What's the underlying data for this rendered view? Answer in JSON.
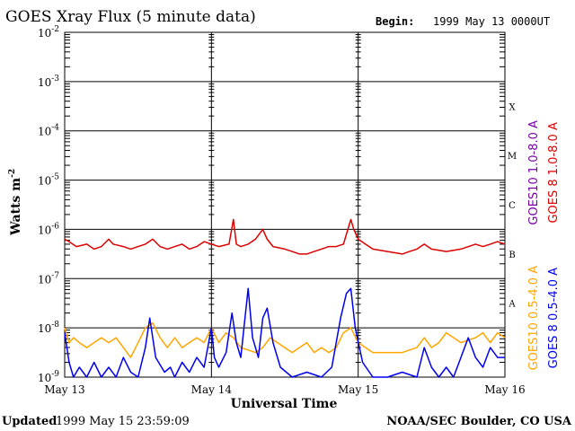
{
  "chart_data": {
    "type": "line",
    "title": "GOES Xray Flux (5 minute data)",
    "begin_label": "Begin:",
    "begin_value": "1999 May 13 0000UT",
    "xlabel": "Universal Time",
    "ylabel": "Watts m",
    "ylabel_sup": "-2",
    "yscale": "log",
    "ylim": [
      1e-09,
      0.01
    ],
    "xlim": [
      0,
      3
    ],
    "x_ticks": [
      {
        "value": 0,
        "label": "May 13"
      },
      {
        "value": 1,
        "label": "May 14"
      },
      {
        "value": 2,
        "label": "May 15"
      },
      {
        "value": 3,
        "label": "May 16"
      }
    ],
    "y_ticks": [
      {
        "exp": -2,
        "base": "10",
        "sup": "-2"
      },
      {
        "exp": -3,
        "base": "10",
        "sup": "-3"
      },
      {
        "exp": -4,
        "base": "10",
        "sup": "-4"
      },
      {
        "exp": -5,
        "base": "10",
        "sup": "-5"
      },
      {
        "exp": -6,
        "base": "10",
        "sup": "-6"
      },
      {
        "exp": -7,
        "base": "10",
        "sup": "-7"
      },
      {
        "exp": -8,
        "base": "10",
        "sup": "-8"
      },
      {
        "exp": -9,
        "base": "10",
        "sup": "-9"
      }
    ],
    "flare_classes": [
      {
        "label": "X",
        "exp": -3.5
      },
      {
        "label": "M",
        "exp": -4.5
      },
      {
        "label": "C",
        "exp": -5.5
      },
      {
        "label": "B",
        "exp": -6.5
      },
      {
        "label": "A",
        "exp": -7.5
      }
    ],
    "grid": true,
    "legend_position": "right",
    "series": [
      {
        "name": "GOES 8 1.0-8.0 A",
        "color": "#dd0000",
        "legend_group": "long",
        "points": [
          [
            0,
            -6.2
          ],
          [
            0.03,
            -6.25
          ],
          [
            0.08,
            -6.35
          ],
          [
            0.15,
            -6.3
          ],
          [
            0.2,
            -6.4
          ],
          [
            0.25,
            -6.35
          ],
          [
            0.3,
            -6.2
          ],
          [
            0.33,
            -6.3
          ],
          [
            0.4,
            -6.35
          ],
          [
            0.45,
            -6.4
          ],
          [
            0.5,
            -6.35
          ],
          [
            0.55,
            -6.3
          ],
          [
            0.6,
            -6.2
          ],
          [
            0.65,
            -6.35
          ],
          [
            0.7,
            -6.4
          ],
          [
            0.75,
            -6.35
          ],
          [
            0.8,
            -6.3
          ],
          [
            0.85,
            -6.4
          ],
          [
            0.9,
            -6.35
          ],
          [
            0.95,
            -6.25
          ],
          [
            1.0,
            -6.3
          ],
          [
            1.05,
            -6.35
          ],
          [
            1.12,
            -6.3
          ],
          [
            1.15,
            -5.8
          ],
          [
            1.17,
            -6.3
          ],
          [
            1.2,
            -6.35
          ],
          [
            1.25,
            -6.3
          ],
          [
            1.3,
            -6.2
          ],
          [
            1.35,
            -6.0
          ],
          [
            1.38,
            -6.2
          ],
          [
            1.42,
            -6.35
          ],
          [
            1.5,
            -6.4
          ],
          [
            1.55,
            -6.45
          ],
          [
            1.6,
            -6.5
          ],
          [
            1.65,
            -6.5
          ],
          [
            1.7,
            -6.45
          ],
          [
            1.75,
            -6.4
          ],
          [
            1.8,
            -6.35
          ],
          [
            1.85,
            -6.35
          ],
          [
            1.9,
            -6.3
          ],
          [
            1.93,
            -6.0
          ],
          [
            1.95,
            -5.8
          ],
          [
            1.97,
            -6.0
          ],
          [
            2.0,
            -6.2
          ],
          [
            2.05,
            -6.3
          ],
          [
            2.1,
            -6.4
          ],
          [
            2.2,
            -6.45
          ],
          [
            2.3,
            -6.5
          ],
          [
            2.35,
            -6.45
          ],
          [
            2.4,
            -6.4
          ],
          [
            2.45,
            -6.3
          ],
          [
            2.5,
            -6.4
          ],
          [
            2.6,
            -6.45
          ],
          [
            2.7,
            -6.4
          ],
          [
            2.8,
            -6.3
          ],
          [
            2.85,
            -6.35
          ],
          [
            2.9,
            -6.3
          ],
          [
            2.95,
            -6.25
          ],
          [
            3.0,
            -6.3
          ]
        ]
      },
      {
        "name": "GOES10 1.0-8.0 A",
        "color": "#7a00a8",
        "legend_group": "long",
        "points": []
      },
      {
        "name": "GOES10 0.5-4.0 A",
        "color": "#ffa500",
        "legend_group": "short",
        "points": [
          [
            0,
            -8.0
          ],
          [
            0.03,
            -8.3
          ],
          [
            0.06,
            -8.2
          ],
          [
            0.1,
            -8.3
          ],
          [
            0.15,
            -8.4
          ],
          [
            0.2,
            -8.3
          ],
          [
            0.25,
            -8.2
          ],
          [
            0.3,
            -8.3
          ],
          [
            0.35,
            -8.2
          ],
          [
            0.4,
            -8.4
          ],
          [
            0.45,
            -8.6
          ],
          [
            0.5,
            -8.3
          ],
          [
            0.55,
            -8.0
          ],
          [
            0.6,
            -7.9
          ],
          [
            0.65,
            -8.2
          ],
          [
            0.7,
            -8.4
          ],
          [
            0.75,
            -8.2
          ],
          [
            0.8,
            -8.4
          ],
          [
            0.85,
            -8.3
          ],
          [
            0.9,
            -8.2
          ],
          [
            0.95,
            -8.3
          ],
          [
            1.0,
            -8.0
          ],
          [
            1.05,
            -8.3
          ],
          [
            1.1,
            -8.1
          ],
          [
            1.15,
            -8.2
          ],
          [
            1.2,
            -8.4
          ],
          [
            1.3,
            -8.5
          ],
          [
            1.35,
            -8.4
          ],
          [
            1.4,
            -8.2
          ],
          [
            1.45,
            -8.3
          ],
          [
            1.5,
            -8.4
          ],
          [
            1.55,
            -8.5
          ],
          [
            1.6,
            -8.4
          ],
          [
            1.65,
            -8.3
          ],
          [
            1.7,
            -8.5
          ],
          [
            1.75,
            -8.4
          ],
          [
            1.8,
            -8.5
          ],
          [
            1.85,
            -8.4
          ],
          [
            1.9,
            -8.1
          ],
          [
            1.95,
            -8.0
          ],
          [
            2.0,
            -8.3
          ],
          [
            2.1,
            -8.5
          ],
          [
            2.2,
            -8.5
          ],
          [
            2.3,
            -8.5
          ],
          [
            2.4,
            -8.4
          ],
          [
            2.45,
            -8.2
          ],
          [
            2.5,
            -8.4
          ],
          [
            2.55,
            -8.3
          ],
          [
            2.6,
            -8.1
          ],
          [
            2.7,
            -8.3
          ],
          [
            2.8,
            -8.2
          ],
          [
            2.85,
            -8.1
          ],
          [
            2.9,
            -8.3
          ],
          [
            2.95,
            -8.1
          ],
          [
            3.0,
            -8.2
          ]
        ]
      },
      {
        "name": "GOES 8 0.5-4.0 A",
        "color": "#0000ee",
        "legend_group": "short",
        "points": [
          [
            0,
            -8.1
          ],
          [
            0.03,
            -8.7
          ],
          [
            0.06,
            -9.0
          ],
          [
            0.1,
            -8.8
          ],
          [
            0.15,
            -9.0
          ],
          [
            0.2,
            -8.7
          ],
          [
            0.25,
            -9.0
          ],
          [
            0.3,
            -8.8
          ],
          [
            0.35,
            -9.0
          ],
          [
            0.4,
            -8.6
          ],
          [
            0.45,
            -8.9
          ],
          [
            0.5,
            -9.0
          ],
          [
            0.55,
            -8.4
          ],
          [
            0.58,
            -7.8
          ],
          [
            0.62,
            -8.6
          ],
          [
            0.68,
            -8.9
          ],
          [
            0.72,
            -8.8
          ],
          [
            0.75,
            -9.0
          ],
          [
            0.8,
            -8.7
          ],
          [
            0.85,
            -8.9
          ],
          [
            0.9,
            -8.6
          ],
          [
            0.95,
            -8.8
          ],
          [
            1.0,
            -8.0
          ],
          [
            1.02,
            -8.6
          ],
          [
            1.05,
            -8.8
          ],
          [
            1.1,
            -8.5
          ],
          [
            1.14,
            -7.7
          ],
          [
            1.17,
            -8.3
          ],
          [
            1.2,
            -8.6
          ],
          [
            1.25,
            -7.2
          ],
          [
            1.28,
            -8.2
          ],
          [
            1.32,
            -8.6
          ],
          [
            1.35,
            -7.8
          ],
          [
            1.38,
            -7.6
          ],
          [
            1.42,
            -8.3
          ],
          [
            1.47,
            -8.8
          ],
          [
            1.55,
            -9.0
          ],
          [
            1.65,
            -8.9
          ],
          [
            1.75,
            -9.0
          ],
          [
            1.82,
            -8.8
          ],
          [
            1.88,
            -7.8
          ],
          [
            1.92,
            -7.3
          ],
          [
            1.95,
            -7.2
          ],
          [
            1.98,
            -8.0
          ],
          [
            2.03,
            -8.7
          ],
          [
            2.1,
            -9.0
          ],
          [
            2.2,
            -9.0
          ],
          [
            2.3,
            -8.9
          ],
          [
            2.4,
            -9.0
          ],
          [
            2.45,
            -8.4
          ],
          [
            2.5,
            -8.8
          ],
          [
            2.55,
            -9.0
          ],
          [
            2.6,
            -8.8
          ],
          [
            2.65,
            -9.0
          ],
          [
            2.7,
            -8.6
          ],
          [
            2.75,
            -8.2
          ],
          [
            2.8,
            -8.6
          ],
          [
            2.85,
            -8.8
          ],
          [
            2.9,
            -8.4
          ],
          [
            2.95,
            -8.6
          ],
          [
            3.0,
            -8.6
          ]
        ]
      }
    ]
  },
  "footer": {
    "updated_label": "Updated",
    "updated_value": "1999 May 15 23:59:09",
    "credit": "NOAA/SEC Boulder, CO USA"
  }
}
